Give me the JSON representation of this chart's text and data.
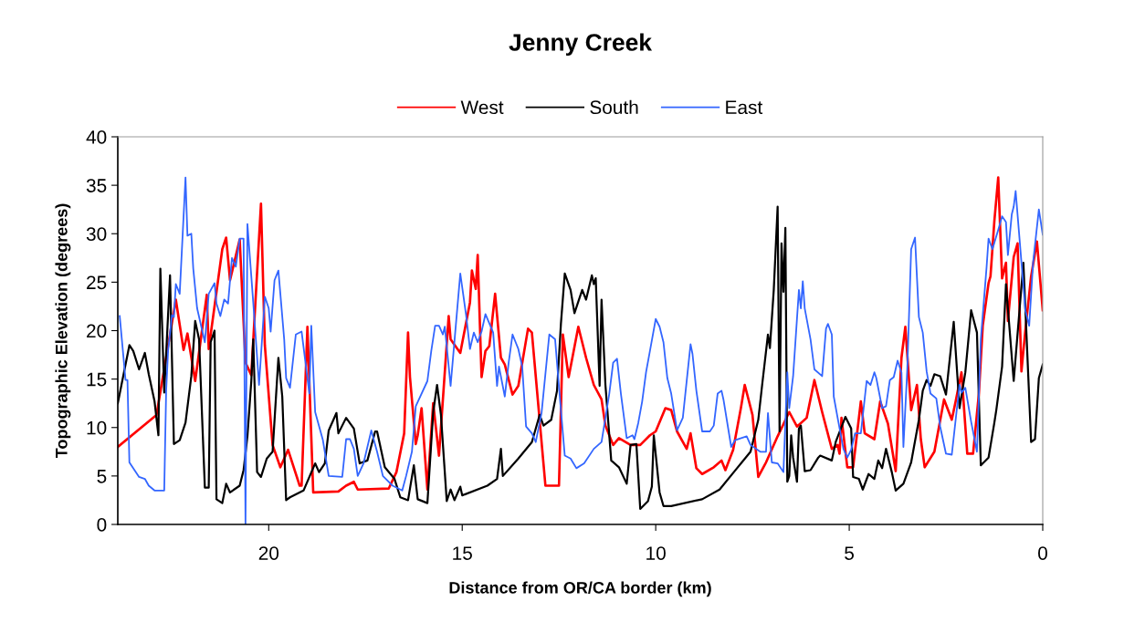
{
  "chart_data": {
    "type": "line",
    "title": "Jenny Creek",
    "xlabel": "Distance from OR/CA border (km)",
    "ylabel": "Topographic Elevation (degrees)",
    "xlim": [
      23.9,
      0
    ],
    "xticks": [
      20,
      15,
      10,
      5,
      0
    ],
    "ylim": [
      0,
      40
    ],
    "yticks": [
      0,
      5,
      10,
      15,
      20,
      25,
      30,
      35,
      40
    ],
    "grid": false,
    "legend": "top",
    "marker": "none",
    "line_style": "solid",
    "series": [
      {
        "name": "West",
        "color": "#ff0000",
        "x": [
          23.9,
          22.9,
          22.4,
          22.2,
          22.1,
          21.9,
          21.6,
          21.55,
          21.2,
          21.1,
          21.0,
          20.75,
          20.6,
          20.45,
          20.2,
          20.1,
          19.9,
          19.7,
          19.5,
          19.2,
          19.15,
          19.0,
          18.85,
          18.2,
          18.0,
          17.8,
          17.7,
          16.9,
          16.7,
          16.5,
          16.4,
          16.35,
          16.2,
          16.15,
          16.05,
          15.9,
          15.75,
          15.6,
          15.35,
          15.3,
          15.05,
          14.8,
          14.75,
          14.65,
          14.6,
          14.5,
          14.4,
          14.3,
          14.15,
          14.0,
          13.9,
          13.7,
          13.55,
          13.3,
          13.2,
          12.85,
          12.5,
          12.4,
          12.25,
          12.0,
          11.8,
          11.6,
          11.4,
          11.3,
          11.1,
          10.95,
          10.65,
          10.4,
          10.15,
          10.0,
          9.75,
          9.6,
          9.45,
          9.2,
          9.1,
          8.95,
          8.8,
          8.5,
          8.3,
          8.2,
          8.0,
          7.8,
          7.7,
          7.5,
          7.35,
          7.15,
          6.85,
          6.55,
          6.35,
          6.1,
          5.9,
          5.7,
          5.45,
          5.3,
          5.25,
          5.2,
          5.05,
          4.9,
          4.7,
          4.6,
          4.35,
          4.2,
          4.0,
          3.8,
          3.65,
          3.55,
          3.4,
          3.25,
          3.15,
          3.05,
          2.8,
          2.55,
          2.35,
          2.25,
          2.1,
          1.95,
          1.8,
          1.65,
          1.55,
          1.4,
          1.35,
          1.25,
          1.15,
          1.05,
          0.95,
          0.9,
          0.75,
          0.65,
          0.55,
          0.45,
          0.3,
          0.15,
          0.0
        ],
        "values": [
          8.0,
          11.3,
          23.2,
          18.0,
          19.7,
          14.8,
          23.7,
          18.1,
          28.4,
          29.6,
          25.2,
          29.4,
          16.7,
          15.4,
          33.1,
          18.5,
          8.2,
          5.9,
          7.7,
          4.0,
          4.0,
          20.4,
          3.3,
          3.4,
          4.0,
          4.4,
          3.6,
          3.7,
          5.4,
          9.4,
          19.8,
          15.2,
          8.3,
          9.2,
          12.0,
          3.6,
          12.5,
          7.1,
          21.5,
          19.1,
          17.7,
          22.9,
          26.2,
          24.3,
          27.8,
          15.2,
          17.9,
          18.4,
          23.8,
          17.2,
          16.5,
          13.4,
          14.3,
          20.2,
          19.8,
          4.0,
          4.0,
          19.6,
          15.2,
          20.4,
          17.2,
          14.4,
          12.9,
          10.2,
          8.2,
          8.9,
          8.2,
          8.2,
          9.2,
          9.6,
          12.0,
          11.8,
          9.6,
          7.8,
          9.4,
          5.8,
          5.2,
          5.9,
          6.6,
          5.6,
          7.7,
          12.0,
          14.4,
          11.3,
          4.9,
          6.4,
          9.1,
          11.6,
          10.1,
          11.0,
          14.9,
          11.6,
          7.8,
          8.2,
          7.3,
          11.0,
          5.9,
          5.9,
          12.7,
          9.4,
          8.8,
          12.7,
          10.4,
          5.5,
          17.2,
          20.4,
          11.8,
          14.4,
          8.8,
          5.9,
          7.5,
          12.9,
          10.8,
          12.7,
          15.7,
          7.3,
          7.3,
          13.5,
          20.5,
          24.9,
          25.6,
          31.3,
          35.8,
          25.4,
          27.0,
          21.0,
          27.6,
          29.0,
          15.8,
          20.0,
          25.6,
          29.2,
          22.1
        ]
      },
      {
        "name": "South",
        "color": "#000000",
        "x": [
          23.9,
          23.6,
          23.5,
          23.35,
          23.2,
          23.1,
          22.95,
          22.85,
          22.8,
          22.7,
          22.55,
          22.45,
          22.3,
          22.15,
          22.0,
          21.9,
          21.8,
          21.65,
          21.55,
          21.5,
          21.4,
          21.35,
          21.2,
          21.1,
          21.0,
          20.75,
          20.65,
          20.55,
          20.45,
          20.4,
          20.3,
          20.2,
          20.05,
          19.9,
          19.75,
          19.65,
          19.55,
          19.45,
          19.1,
          18.8,
          18.7,
          18.55,
          18.45,
          18.25,
          18.2,
          18.0,
          17.8,
          17.65,
          17.45,
          17.25,
          17.2,
          17.0,
          16.75,
          16.6,
          16.4,
          16.25,
          16.15,
          15.9,
          15.75,
          15.65,
          15.55,
          15.4,
          15.3,
          15.2,
          15.05,
          15.0,
          14.35,
          14.1,
          14.0,
          13.95,
          13.55,
          13.2,
          13.0,
          12.9,
          12.7,
          12.55,
          12.45,
          12.35,
          12.2,
          12.1,
          11.9,
          11.8,
          11.65,
          11.6,
          11.55,
          11.45,
          11.4,
          11.3,
          11.15,
          10.95,
          10.75,
          10.65,
          10.5,
          10.4,
          10.2,
          10.1,
          10.05,
          9.9,
          9.8,
          9.6,
          8.8,
          8.35,
          7.9,
          7.55,
          7.35,
          7.25,
          7.1,
          7.05,
          6.95,
          6.85,
          6.8,
          6.75,
          6.7,
          6.65,
          6.6,
          6.55,
          6.5,
          6.45,
          6.35,
          6.3,
          6.25,
          6.15,
          6.0,
          5.8,
          5.75,
          5.45,
          5.35,
          5.1,
          4.95,
          4.9,
          4.75,
          4.65,
          4.5,
          4.35,
          4.25,
          4.15,
          4.05,
          3.9,
          3.8,
          3.6,
          3.4,
          3.2,
          3.1,
          3.0,
          2.9,
          2.8,
          2.65,
          2.5,
          2.3,
          2.15,
          2.0,
          1.85,
          1.7,
          1.6,
          1.4,
          1.25,
          1.2,
          1.05,
          0.95,
          0.75,
          0.5,
          0.3,
          0.2,
          0.1,
          0.0
        ],
        "values": [
          12.5,
          18.5,
          17.9,
          16.0,
          17.7,
          15.5,
          12.7,
          9.2,
          26.4,
          13.6,
          25.7,
          8.3,
          8.7,
          10.5,
          15.3,
          21.0,
          19.1,
          3.8,
          3.8,
          18.8,
          20.0,
          2.6,
          2.2,
          4.2,
          3.3,
          4.0,
          5.6,
          9.1,
          14.8,
          19.1,
          5.4,
          4.9,
          6.8,
          7.5,
          17.2,
          13.2,
          2.5,
          2.8,
          3.5,
          6.3,
          5.4,
          6.3,
          9.7,
          11.5,
          9.4,
          11.0,
          9.9,
          6.3,
          6.6,
          9.6,
          9.6,
          5.9,
          4.7,
          2.8,
          2.5,
          6.1,
          2.6,
          2.2,
          11.6,
          14.4,
          11.3,
          2.4,
          3.6,
          2.5,
          3.9,
          3.0,
          4.0,
          4.7,
          7.8,
          5.0,
          6.8,
          8.5,
          11.3,
          10.2,
          10.8,
          13.8,
          20.7,
          25.9,
          24.2,
          21.8,
          24.2,
          23.2,
          25.7,
          24.8,
          25.4,
          14.3,
          23.2,
          14.4,
          6.6,
          5.9,
          4.2,
          8.2,
          8.3,
          1.6,
          2.4,
          3.9,
          9.2,
          3.3,
          1.9,
          1.9,
          2.6,
          3.6,
          5.8,
          7.5,
          10.8,
          14.4,
          19.6,
          18.2,
          24.2,
          32.8,
          9.6,
          29.0,
          24.0,
          30.6,
          4.4,
          5.0,
          9.2,
          6.9,
          4.4,
          9.9,
          10.2,
          5.5,
          5.6,
          6.9,
          7.1,
          6.6,
          8.5,
          11.1,
          9.9,
          4.9,
          4.7,
          3.6,
          5.2,
          4.7,
          6.6,
          5.8,
          7.8,
          5.4,
          3.5,
          4.2,
          6.4,
          10.8,
          13.8,
          14.9,
          14.3,
          15.5,
          15.3,
          13.4,
          20.9,
          12.0,
          15.7,
          22.1,
          19.8,
          6.1,
          6.9,
          10.5,
          11.8,
          16.3,
          24.8,
          14.8,
          27.0,
          8.5,
          8.8,
          15.1,
          16.5
        ]
      },
      {
        "name": "East",
        "color": "#3366ff",
        "x": [
          23.85,
          23.7,
          23.65,
          23.6,
          23.35,
          23.2,
          23.1,
          22.95,
          22.7,
          22.65,
          22.6,
          22.5,
          22.45,
          22.4,
          22.3,
          22.15,
          22.1,
          22.0,
          21.95,
          21.85,
          21.65,
          21.55,
          21.4,
          21.35,
          21.25,
          21.15,
          21.05,
          20.95,
          20.85,
          20.75,
          20.65,
          20.6,
          20.55,
          20.4,
          20.25,
          20.1,
          20.0,
          19.95,
          19.85,
          19.75,
          19.6,
          19.55,
          19.45,
          19.3,
          19.15,
          18.95,
          18.9,
          18.8,
          18.6,
          18.45,
          18.1,
          18.0,
          17.9,
          17.8,
          17.7,
          17.55,
          17.35,
          17.2,
          17.05,
          16.8,
          16.55,
          16.45,
          16.3,
          16.2,
          15.9,
          15.8,
          15.7,
          15.6,
          15.5,
          15.45,
          15.3,
          15.05,
          14.9,
          14.8,
          14.7,
          14.6,
          14.5,
          14.4,
          14.2,
          14.1,
          14.05,
          13.9,
          13.8,
          13.7,
          13.55,
          13.45,
          13.35,
          13.2,
          13.1,
          12.95,
          12.75,
          12.6,
          12.45,
          12.35,
          12.2,
          12.05,
          11.85,
          11.6,
          11.4,
          11.3,
          11.2,
          11.1,
          11.0,
          10.9,
          10.75,
          10.6,
          10.55,
          10.45,
          10.35,
          10.25,
          10.15,
          10.0,
          9.9,
          9.8,
          9.7,
          9.6,
          9.45,
          9.3,
          9.1,
          9.05,
          8.95,
          8.8,
          8.6,
          8.5,
          8.4,
          8.3,
          8.25,
          8.05,
          7.95,
          7.65,
          7.55,
          7.3,
          7.15,
          7.1,
          7.0,
          6.85,
          6.7,
          6.6,
          6.55,
          6.45,
          6.3,
          6.25,
          6.2,
          6.15,
          6.0,
          5.9,
          5.7,
          5.6,
          5.55,
          5.45,
          5.4,
          5.3,
          5.15,
          5.05,
          4.95,
          4.85,
          4.7,
          4.55,
          4.45,
          4.35,
          4.3,
          4.15,
          4.05,
          3.95,
          3.85,
          3.75,
          3.65,
          3.6,
          3.5,
          3.4,
          3.3,
          3.2,
          3.1,
          3.0,
          2.9,
          2.75,
          2.65,
          2.5,
          2.35,
          2.15,
          2.1,
          2.0,
          1.85,
          1.7,
          1.6,
          1.45,
          1.4,
          1.3,
          1.15,
          1.05,
          0.95,
          0.9,
          0.8,
          0.75,
          0.7,
          0.6,
          0.45,
          0.35,
          0.25,
          0.1,
          0.0
        ],
        "values": [
          21.5,
          14.9,
          14.9,
          6.4,
          4.9,
          4.7,
          4.0,
          3.5,
          3.5,
          13.8,
          17.9,
          21.6,
          21.4,
          24.8,
          23.8,
          35.8,
          29.8,
          30.0,
          26.4,
          22.3,
          18.8,
          23.8,
          24.9,
          22.8,
          21.5,
          23.2,
          22.8,
          27.5,
          26.6,
          29.5,
          29.5,
          0.0,
          31.0,
          22.9,
          14.4,
          23.5,
          22.3,
          19.9,
          25.2,
          26.2,
          19.1,
          15.1,
          14.1,
          19.6,
          19.9,
          13.5,
          20.5,
          11.6,
          8.7,
          5.0,
          4.9,
          8.8,
          8.8,
          7.8,
          5.0,
          6.3,
          9.7,
          7.5,
          5.0,
          4.0,
          3.5,
          5.0,
          7.5,
          12.2,
          14.8,
          17.9,
          20.5,
          20.5,
          19.6,
          20.4,
          14.3,
          25.9,
          21.6,
          18.1,
          19.8,
          18.8,
          19.9,
          21.7,
          19.8,
          14.3,
          16.3,
          13.2,
          16.7,
          19.6,
          18.1,
          16.3,
          10.1,
          9.4,
          8.5,
          11.5,
          19.6,
          19.1,
          11.8,
          7.1,
          6.8,
          5.8,
          6.3,
          7.8,
          8.5,
          11.0,
          13.5,
          16.7,
          17.1,
          13.5,
          8.9,
          9.2,
          8.8,
          10.5,
          12.7,
          15.7,
          17.9,
          21.2,
          20.4,
          18.8,
          15.1,
          13.5,
          9.7,
          11.0,
          18.6,
          17.6,
          13.8,
          9.6,
          9.6,
          10.2,
          13.5,
          13.8,
          12.9,
          8.0,
          8.7,
          9.1,
          8.2,
          7.5,
          7.5,
          11.5,
          6.4,
          6.3,
          5.4,
          15.7,
          12.0,
          15.3,
          24.2,
          22.3,
          25.1,
          22.3,
          19.1,
          16.0,
          15.3,
          20.2,
          20.7,
          19.6,
          13.2,
          11.0,
          7.8,
          6.9,
          7.7,
          9.4,
          9.4,
          14.8,
          14.4,
          15.7,
          15.1,
          12.0,
          12.2,
          14.9,
          15.2,
          16.9,
          15.7,
          8.0,
          16.0,
          28.4,
          29.6,
          21.4,
          19.8,
          15.8,
          13.5,
          13.0,
          10.1,
          7.3,
          7.2,
          14.4,
          13.6,
          14.1,
          10.6,
          7.5,
          19.1,
          26.6,
          29.5,
          28.4,
          30.4,
          31.8,
          31.2,
          27.8,
          32.0,
          32.8,
          34.4,
          29.5,
          22.1,
          20.5,
          27.0,
          32.5,
          29.9
        ]
      }
    ]
  }
}
